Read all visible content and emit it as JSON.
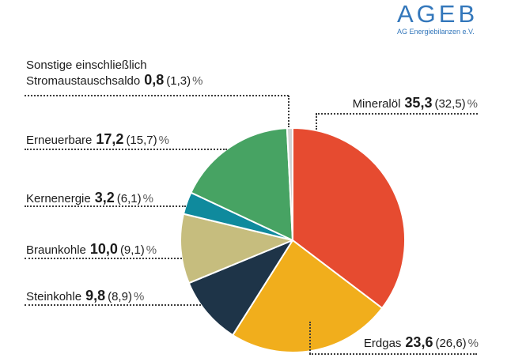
{
  "logo": {
    "title": "AGEB",
    "subtitle": "AG Energiebilanzen e.V.",
    "color": "#3377bb"
  },
  "chart_data": {
    "type": "pie",
    "unit": "%",
    "title": "",
    "direction": "clockwise",
    "start_angle_deg": 0,
    "note_format": "bold = current share %, parentheses = previous share %",
    "slices": [
      {
        "id": "mineraloel",
        "label": "Mineralöl",
        "value": 35.3,
        "prev_value": 32.5,
        "value_label": "35,3",
        "prev_label": "(32,5)",
        "color": "#e64b30"
      },
      {
        "id": "erdgas",
        "label": "Erdgas",
        "value": 23.6,
        "prev_value": 26.6,
        "value_label": "23,6",
        "prev_label": "(26,6)",
        "color": "#f1ae1c"
      },
      {
        "id": "steinkohle",
        "label": "Steinkohle",
        "value": 9.8,
        "prev_value": 8.9,
        "value_label": "9,8",
        "prev_label": "(8,9)",
        "color": "#1e3448"
      },
      {
        "id": "braunkohle",
        "label": "Braunkohle",
        "value": 10.0,
        "prev_value": 9.1,
        "value_label": "10,0",
        "prev_label": "(9,1)",
        "color": "#c6bd7e"
      },
      {
        "id": "kernenergie",
        "label": "Kernenergie",
        "value": 3.2,
        "prev_value": 6.1,
        "value_label": "3,2",
        "prev_label": "(6,1)",
        "color": "#0f8a9d"
      },
      {
        "id": "erneuerbare",
        "label": "Erneuerbare",
        "value": 17.2,
        "prev_value": 15.7,
        "value_label": "17,2",
        "prev_label": "(15,7)",
        "color": "#47a363"
      },
      {
        "id": "sonstige",
        "label": "Sonstige einschließlich Stromaustauschsaldo",
        "label_line1": "Sonstige einschließlich",
        "label_line2": "Stromaustauschsaldo",
        "value": 0.8,
        "prev_value": 1.3,
        "value_label": "0,8",
        "prev_label": "(1,3)",
        "color": "#d3d3d3"
      }
    ]
  }
}
